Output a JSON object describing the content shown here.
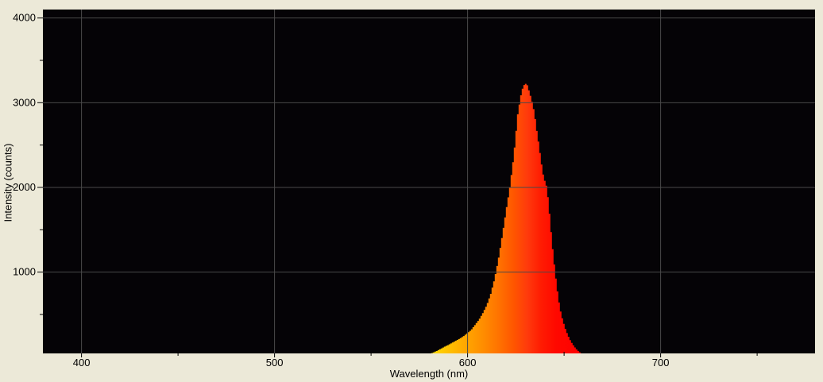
{
  "window": {
    "background_color": "#ece9d8"
  },
  "chart_data": {
    "type": "area",
    "title": "",
    "xlabel": "Wavelength (nm)",
    "ylabel": "Intensity (counts)",
    "xlim": [
      380,
      780
    ],
    "ylim": [
      40,
      4100
    ],
    "x_major_ticks": [
      400,
      500,
      600,
      700
    ],
    "x_minor_ticks": [
      450,
      550,
      650,
      750
    ],
    "y_major_ticks": [
      1000,
      2000,
      3000,
      4000
    ],
    "y_minor_ticks": [
      500,
      1500,
      2500,
      3500
    ],
    "grid": "major-only",
    "legend": "none",
    "plot_background": "#050306",
    "grid_color": "#4a4a4a",
    "tick_color": "#000000",
    "label_color": "#000000",
    "peak_wavelength_nm": 630,
    "peak_intensity_counts": 3225,
    "spectrum_range_nm": [
      568,
      665
    ],
    "spectrum": [
      [
        568,
        1
      ],
      [
        570,
        2
      ],
      [
        572,
        4
      ],
      [
        574,
        7
      ],
      [
        576,
        12
      ],
      [
        578,
        20
      ],
      [
        580,
        32
      ],
      [
        582,
        48
      ],
      [
        584,
        68
      ],
      [
        586,
        92
      ],
      [
        588,
        118
      ],
      [
        590,
        140
      ],
      [
        592,
        165
      ],
      [
        594,
        190
      ],
      [
        596,
        215
      ],
      [
        598,
        245
      ],
      [
        600,
        280
      ],
      [
        602,
        320
      ],
      [
        604,
        380
      ],
      [
        606,
        440
      ],
      [
        608,
        520
      ],
      [
        610,
        610
      ],
      [
        612,
        740
      ],
      [
        614,
        920
      ],
      [
        616,
        1150
      ],
      [
        618,
        1430
      ],
      [
        620,
        1730
      ],
      [
        622,
        2010
      ],
      [
        624,
        2380
      ],
      [
        626,
        2860
      ],
      [
        627,
        3000
      ],
      [
        628,
        3130
      ],
      [
        629,
        3200
      ],
      [
        630,
        3225
      ],
      [
        631,
        3205
      ],
      [
        632,
        3130
      ],
      [
        633,
        3050
      ],
      [
        634,
        2960
      ],
      [
        635,
        2820
      ],
      [
        636,
        2650
      ],
      [
        637,
        2500
      ],
      [
        638,
        2330
      ],
      [
        639,
        2170
      ],
      [
        640,
        2080
      ],
      [
        641,
        2010
      ],
      [
        642,
        1820
      ],
      [
        643,
        1550
      ],
      [
        644,
        1300
      ],
      [
        645,
        1080
      ],
      [
        646,
        880
      ],
      [
        647,
        700
      ],
      [
        648,
        560
      ],
      [
        649,
        460
      ],
      [
        650,
        380
      ],
      [
        651,
        310
      ],
      [
        652,
        255
      ],
      [
        653,
        205
      ],
      [
        654,
        165
      ],
      [
        655,
        130
      ],
      [
        656,
        100
      ],
      [
        657,
        75
      ],
      [
        658,
        55
      ],
      [
        659,
        40
      ],
      [
        660,
        28
      ],
      [
        661,
        18
      ],
      [
        662,
        11
      ],
      [
        663,
        6
      ],
      [
        664,
        3
      ],
      [
        665,
        1
      ]
    ],
    "wavelength_colors": [
      {
        "nm": 575,
        "color": "#ffe600"
      },
      {
        "nm": 584,
        "color": "#ffd200"
      },
      {
        "nm": 592,
        "color": "#ffbb00"
      },
      {
        "nm": 600,
        "color": "#ffa400"
      },
      {
        "nm": 608,
        "color": "#ff8d00"
      },
      {
        "nm": 616,
        "color": "#ff7300"
      },
      {
        "nm": 624,
        "color": "#ff5500"
      },
      {
        "nm": 631,
        "color": "#ff3a0c"
      },
      {
        "nm": 638,
        "color": "#ff1c02"
      },
      {
        "nm": 646,
        "color": "#ff0800"
      },
      {
        "nm": 660,
        "color": "#fe0000"
      }
    ]
  }
}
